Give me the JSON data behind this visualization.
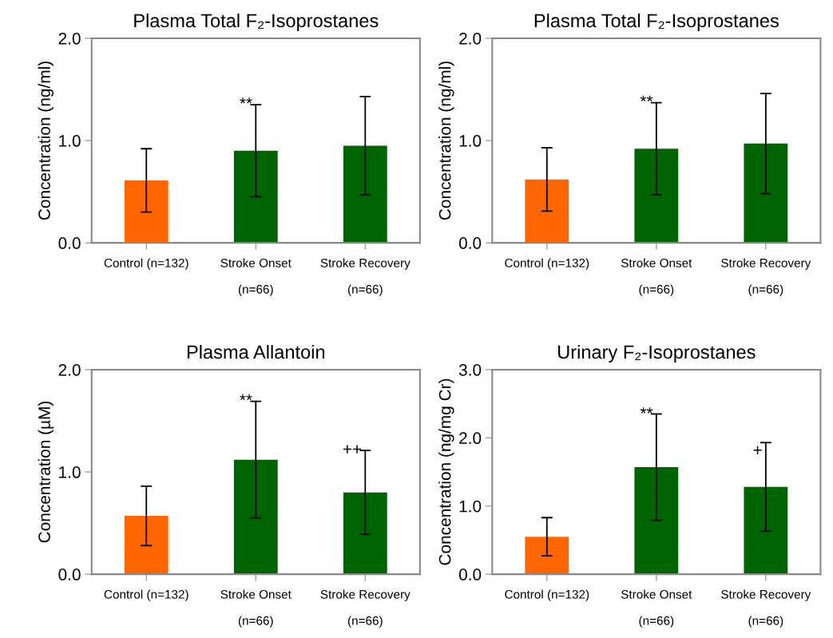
{
  "chart_data": [
    {
      "type": "bar",
      "title": "Plasma Total F₂-Isoprostanes",
      "ylabel": "Concentration (ng/ml)",
      "categories": [
        "Control (n=132)",
        "Stroke Onset\n\n(n=66)",
        "Stroke Recovery\n\n(n=66)"
      ],
      "values": [
        0.61,
        0.9,
        0.95
      ],
      "errors": [
        0.31,
        0.45,
        0.48
      ],
      "colors": [
        "#ff6600",
        "#006400",
        "#006400"
      ],
      "ylim": [
        0,
        2
      ],
      "yticks": [
        {
          "value": 0,
          "label": "0.0"
        },
        {
          "value": 1,
          "label": "1.0"
        },
        {
          "value": 2,
          "label": "2.0"
        }
      ],
      "grid": false,
      "legend": false,
      "annotations": [
        {
          "text": "**",
          "x": "Stroke Onset\n\n(n=66)",
          "y": 1.35
        }
      ]
    },
    {
      "type": "bar",
      "title": "Plasma Total F₂-Isoprostanes",
      "ylabel": "Concentration (ng/ml)",
      "categories": [
        "Control (n=132)",
        "Stroke Onset\n\n(n=66)",
        "Stroke Recovery\n\n(n=66)"
      ],
      "values": [
        0.62,
        0.92,
        0.97
      ],
      "errors": [
        0.31,
        0.45,
        0.49
      ],
      "colors": [
        "#ff6600",
        "#006400",
        "#006400"
      ],
      "ylim": [
        0,
        2
      ],
      "yticks": [
        {
          "value": 0,
          "label": "0.0"
        },
        {
          "value": 1,
          "label": "1.0"
        },
        {
          "value": 2,
          "label": "2.0"
        }
      ],
      "grid": false,
      "legend": false,
      "annotations": [
        {
          "text": "**",
          "x": "Stroke Onset\n\n(n=66)",
          "y": 1.37
        }
      ]
    },
    {
      "type": "bar",
      "title": "Plasma Allantoin",
      "ylabel": "Concentration (µM)",
      "categories": [
        "Control (n=132)",
        "Stroke Onset\n\n(n=66)",
        "Stroke Recovery\n\n(n=66)"
      ],
      "values": [
        0.57,
        1.12,
        0.8
      ],
      "errors": [
        0.29,
        0.57,
        0.41
      ],
      "colors": [
        "#ff6600",
        "#006400",
        "#006400"
      ],
      "ylim": [
        0,
        2
      ],
      "yticks": [
        {
          "value": 0,
          "label": "0.0"
        },
        {
          "value": 1,
          "label": "1.0"
        },
        {
          "value": 2,
          "label": "2.0"
        }
      ],
      "grid": false,
      "legend": false,
      "annotations": [
        {
          "text": "**",
          "x": "Stroke Onset\n\n(n=66)",
          "y": 1.69
        },
        {
          "text": "++",
          "x": "Stroke Recovery\n\n(n=66)",
          "y": 1.21
        }
      ]
    },
    {
      "type": "bar",
      "title": "Urinary F₂-Isoprostanes",
      "ylabel": "Concentration (ng/mg Cr)",
      "categories": [
        "Control (n=132)",
        "Stroke Onset\n\n(n=66)",
        "Stroke Recovery\n\n(n=66)"
      ],
      "values": [
        0.55,
        1.57,
        1.28
      ],
      "errors": [
        0.28,
        0.78,
        0.65
      ],
      "colors": [
        "#ff6600",
        "#006400",
        "#006400"
      ],
      "ylim": [
        0,
        3
      ],
      "yticks": [
        {
          "value": 0,
          "label": "0.0"
        },
        {
          "value": 1,
          "label": "1.0"
        },
        {
          "value": 2,
          "label": "2.0"
        },
        {
          "value": 3,
          "label": "3.0"
        }
      ],
      "grid": false,
      "legend": false,
      "annotations": [
        {
          "text": "**",
          "x": "Stroke Onset\n\n(n=66)",
          "y": 2.34
        },
        {
          "text": "+",
          "x": "Stroke Recovery\n\n(n=66)",
          "y": 1.8
        }
      ]
    }
  ]
}
